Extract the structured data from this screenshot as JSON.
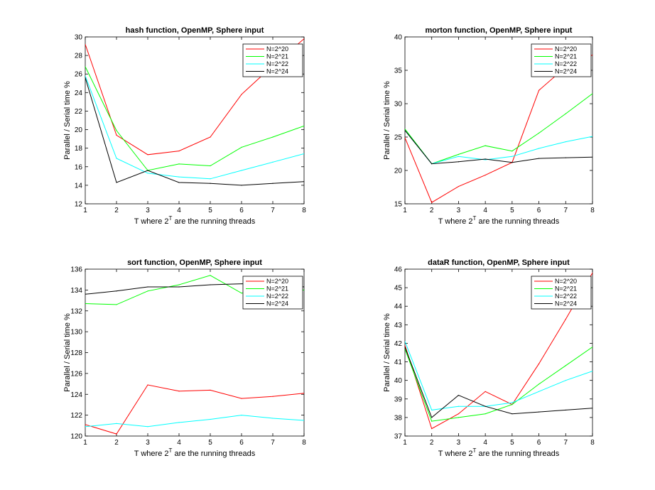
{
  "chart_data": [
    {
      "type": "line",
      "title": "hash function, OpenMP, Sphere input",
      "xlabel": {
        "prefix": "T where 2",
        "sup": "T",
        "suffix": " are the running threads"
      },
      "ylabel": "Parallel / Serial time %",
      "x": [
        1,
        2,
        3,
        4,
        5,
        6,
        7,
        8
      ],
      "xlim": [
        1,
        8
      ],
      "ylim": [
        12,
        30
      ],
      "yticks": [
        12,
        14,
        16,
        18,
        20,
        22,
        24,
        26,
        28,
        30
      ],
      "legend_position": "top-right",
      "series": [
        {
          "name": "N=2^20",
          "color": "#ff0000",
          "values": [
            29.2,
            19.4,
            17.3,
            17.7,
            19.2,
            23.8,
            26.9,
            29.8
          ]
        },
        {
          "name": "N=2^21",
          "color": "#00ff00",
          "values": [
            26.8,
            19.9,
            15.6,
            16.3,
            16.1,
            18.1,
            19.2,
            20.4
          ]
        },
        {
          "name": "N=2^22",
          "color": "#00ffff",
          "values": [
            25.8,
            16.9,
            15.3,
            14.9,
            14.7,
            15.6,
            16.5,
            17.4
          ]
        },
        {
          "name": "N=2^24",
          "color": "#000000",
          "values": [
            25.6,
            14.3,
            15.6,
            14.3,
            14.2,
            14.0,
            14.2,
            14.4
          ]
        }
      ]
    },
    {
      "type": "line",
      "title": "morton function, OpenMP, Sphere input",
      "xlabel": {
        "prefix": "T where 2",
        "sup": "T",
        "suffix": " are the running threads"
      },
      "ylabel": "Parallel / Serial time %",
      "x": [
        1,
        2,
        3,
        4,
        5,
        6,
        7,
        8
      ],
      "xlim": [
        1,
        8
      ],
      "ylim": [
        15,
        40
      ],
      "yticks": [
        15,
        20,
        25,
        30,
        35,
        40
      ],
      "legend_position": "top-right",
      "series": [
        {
          "name": "N=2^20",
          "color": "#ff0000",
          "values": [
            24.9,
            15.2,
            17.6,
            19.3,
            21.2,
            32.0,
            35.5,
            37.3
          ]
        },
        {
          "name": "N=2^21",
          "color": "#00ff00",
          "values": [
            26.2,
            21.0,
            22.4,
            23.7,
            22.9,
            25.6,
            28.5,
            31.5
          ]
        },
        {
          "name": "N=2^22",
          "color": "#00ffff",
          "values": [
            26.0,
            21.0,
            22.1,
            21.6,
            22.1,
            23.3,
            24.3,
            25.1
          ]
        },
        {
          "name": "N=2^24",
          "color": "#000000",
          "values": [
            26.0,
            21.0,
            21.3,
            21.7,
            21.2,
            21.8,
            21.9,
            22.0
          ]
        }
      ]
    },
    {
      "type": "line",
      "title": "sort function, OpenMP, Sphere input",
      "xlabel": {
        "prefix": "T where 2",
        "sup": "T",
        "suffix": " are the running threads"
      },
      "ylabel": "Parallel / Serial time %",
      "x": [
        1,
        2,
        3,
        4,
        5,
        6,
        7,
        8
      ],
      "xlim": [
        1,
        8
      ],
      "ylim": [
        120,
        136
      ],
      "yticks": [
        120,
        122,
        124,
        126,
        128,
        130,
        132,
        134,
        136
      ],
      "legend_position": "top-right",
      "series": [
        {
          "name": "N=2^20",
          "color": "#ff0000",
          "values": [
            121.1,
            120.2,
            124.9,
            124.3,
            124.4,
            123.6,
            123.8,
            124.1
          ]
        },
        {
          "name": "N=2^21",
          "color": "#00ff00",
          "values": [
            132.7,
            132.6,
            133.9,
            134.5,
            135.4,
            133.7,
            133.9,
            134.0
          ]
        },
        {
          "name": "N=2^22",
          "color": "#00ffff",
          "values": [
            120.9,
            121.2,
            120.9,
            121.3,
            121.6,
            122.0,
            121.7,
            121.5
          ]
        },
        {
          "name": "N=2^24",
          "color": "#000000",
          "values": [
            133.6,
            133.9,
            134.3,
            134.3,
            134.5,
            134.6,
            134.6,
            134.3
          ]
        }
      ]
    },
    {
      "type": "line",
      "title": "dataR function, OpenMP, Sphere input",
      "xlabel": {
        "prefix": "T where 2",
        "sup": "T",
        "suffix": " are the running threads"
      },
      "ylabel": "Parallel / Serial time %",
      "x": [
        1,
        2,
        3,
        4,
        5,
        6,
        7,
        8
      ],
      "xlim": [
        1,
        8
      ],
      "ylim": [
        37,
        46
      ],
      "yticks": [
        37,
        38,
        39,
        40,
        41,
        42,
        43,
        44,
        45,
        46
      ],
      "legend_position": "top-right",
      "series": [
        {
          "name": "N=2^20",
          "color": "#ff0000",
          "values": [
            41.9,
            37.4,
            38.2,
            39.4,
            38.7,
            40.9,
            43.3,
            45.8
          ]
        },
        {
          "name": "N=2^21",
          "color": "#00ff00",
          "values": [
            41.7,
            37.8,
            38.0,
            38.2,
            38.7,
            39.8,
            40.8,
            41.8
          ]
        },
        {
          "name": "N=2^22",
          "color": "#00ffff",
          "values": [
            42.1,
            38.4,
            38.6,
            38.6,
            38.8,
            39.4,
            40.0,
            40.5
          ]
        },
        {
          "name": "N=2^24",
          "color": "#000000",
          "values": [
            41.8,
            38.0,
            39.2,
            38.6,
            38.2,
            38.3,
            38.4,
            38.5
          ]
        }
      ]
    }
  ]
}
